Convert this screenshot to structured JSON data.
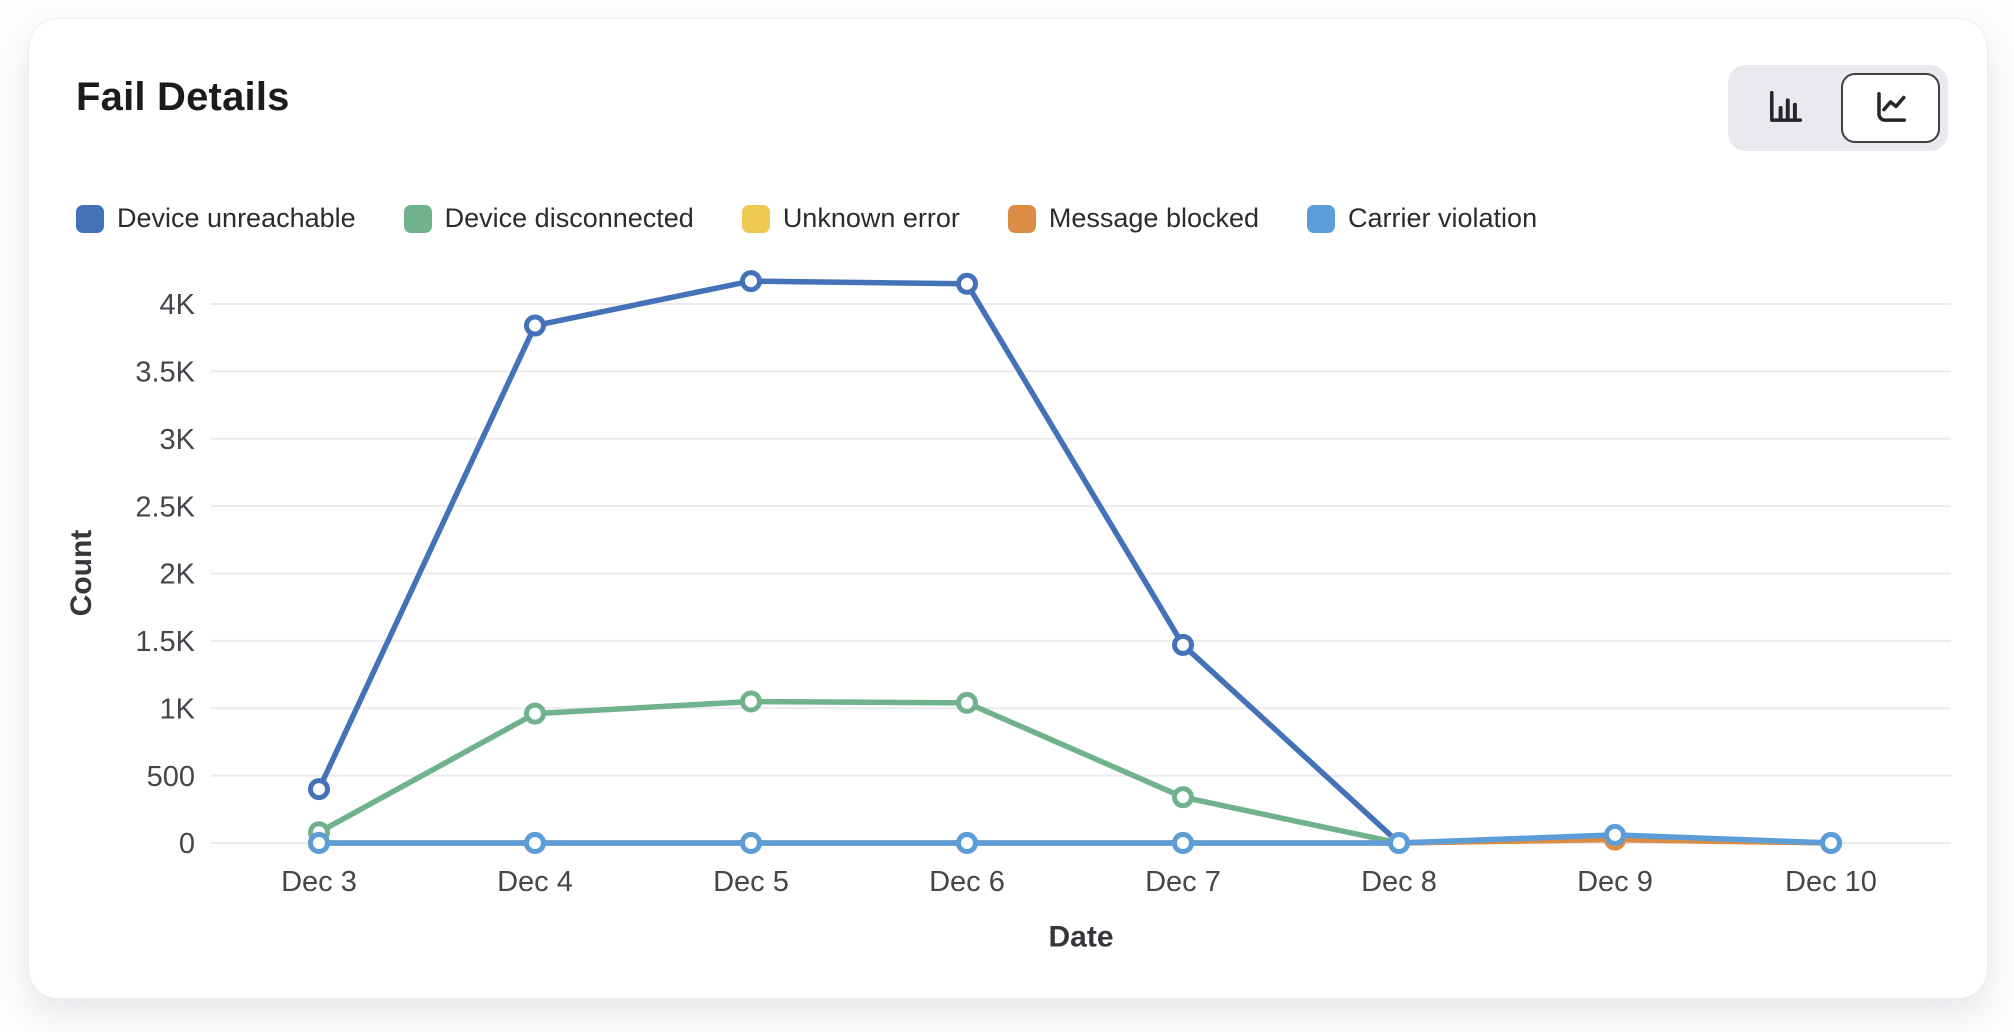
{
  "header": {
    "title": "Fail Details"
  },
  "toolbar": {
    "chart_type_options": [
      {
        "id": "bar",
        "icon": "bar-chart-icon",
        "active": false
      },
      {
        "id": "line",
        "icon": "line-chart-icon",
        "active": true
      }
    ]
  },
  "colors": {
    "card_background": "#ffffff",
    "page_background": "#fdfdfe",
    "gridline": "#ebebee",
    "tick_text": "#45454c",
    "toggle_background": "#e9e9ee",
    "toggle_active_border": "#3f3f46"
  },
  "chart_data": {
    "type": "line",
    "title": "Fail Details",
    "xlabel": "Date",
    "ylabel": "Count",
    "categories": [
      "Dec 3",
      "Dec 4",
      "Dec 5",
      "Dec 6",
      "Dec 7",
      "Dec 8",
      "Dec 9",
      "Dec 10"
    ],
    "series": [
      {
        "name": "Device unreachable",
        "color": "#4472b8",
        "values": [
          400,
          3840,
          4170,
          4150,
          1470,
          0,
          40,
          0
        ]
      },
      {
        "name": "Device disconnected",
        "color": "#6fb28c",
        "values": [
          80,
          960,
          1050,
          1040,
          340,
          0,
          45,
          0
        ]
      },
      {
        "name": "Unknown error",
        "color": "#edc951",
        "values": [
          0,
          0,
          0,
          0,
          0,
          0,
          40,
          0
        ]
      },
      {
        "name": "Message blocked",
        "color": "#dc8d45",
        "values": [
          0,
          0,
          0,
          0,
          0,
          0,
          25,
          0
        ]
      },
      {
        "name": "Carrier violation",
        "color": "#5c9cd9",
        "values": [
          0,
          0,
          0,
          0,
          0,
          0,
          60,
          0
        ]
      }
    ],
    "ylim": [
      0,
      4000
    ],
    "yticks": [
      {
        "value": 0,
        "label": "0"
      },
      {
        "value": 500,
        "label": "500"
      },
      {
        "value": 1000,
        "label": "1K"
      },
      {
        "value": 1500,
        "label": "1.5K"
      },
      {
        "value": 2000,
        "label": "2K"
      },
      {
        "value": 2500,
        "label": "2.5K"
      },
      {
        "value": 3000,
        "label": "3K"
      },
      {
        "value": 3500,
        "label": "3.5K"
      },
      {
        "value": 4000,
        "label": "4K"
      }
    ],
    "grid": "horizontal",
    "legend_position": "top",
    "marker": "open-circle"
  }
}
